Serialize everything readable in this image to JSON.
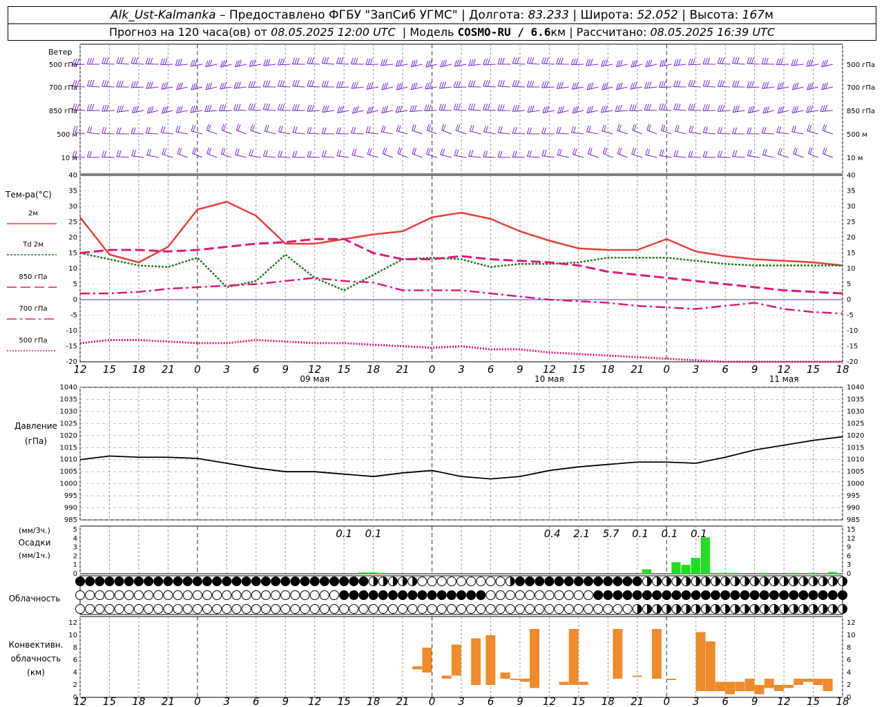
{
  "header": {
    "station": "Alk_Ust-Kalmanka",
    "provider": "Предоставлено ФГБУ \"ЗапСиб УГМС\"",
    "lon_label": "Долгота:",
    "lon_value": "83.233",
    "lat_label": "Широта:",
    "lat_value": "52.052",
    "alt_label": "Высота:",
    "alt_value": "167",
    "alt_unit": "м",
    "forecast_label": "Прогноз на 120 часа(ов) от",
    "forecast_time": "08.05.2025 12:00 UTC",
    "model_label": "Модель",
    "model_name": "COSMO-RU / 6.6",
    "model_unit": "км",
    "calc_label": "Рассчитано:",
    "calc_time": "08.05.2025 16:39 UTC"
  },
  "colors": {
    "wind": "#7a1fd6",
    "t2m": "#ea3e36",
    "td2m": "#1e7a1e",
    "t850": "#e0177e",
    "t700": "#e0177e",
    "t500": "#e0177e",
    "zero": "#3b3bd6",
    "pressure": "#000000",
    "precip": "#1ee01e",
    "convective": "#f08a2a",
    "grid": "#9a9a9a"
  },
  "time_axis": {
    "hour_labels": [
      "12",
      "15",
      "18",
      "21",
      "0",
      "3",
      "6",
      "9",
      "12",
      "15",
      "18",
      "21",
      "0",
      "3",
      "6",
      "9",
      "12",
      "15",
      "18",
      "21",
      "0",
      "3",
      "6",
      "9",
      "12",
      "15",
      "18"
    ],
    "day_labels": [
      {
        "hour": 24,
        "text": "09 мая"
      },
      {
        "hour": 48,
        "text": "10 мая"
      },
      {
        "hour": 72,
        "text": "11 мая"
      }
    ],
    "hours_start": 0,
    "hours_end": 78
  },
  "wind_panel": {
    "title": "Ветер",
    "levels": [
      "500 гПа",
      "700 гПа",
      "850 гПа",
      "500 м",
      "10 м"
    ]
  },
  "temp_panel": {
    "ylabel": "Тем-ра(°C)",
    "legend": [
      {
        "key": "t2m",
        "text": "2м",
        "style": "solid"
      },
      {
        "key": "td2m",
        "text": "Td  2м",
        "style": "dotted"
      },
      {
        "key": "t850",
        "text": "850 гПа",
        "style": "longdash"
      },
      {
        "key": "t700",
        "text": "700 гПа",
        "style": "dashdot"
      },
      {
        "key": "t500",
        "text": "500 гПа",
        "style": "dots"
      }
    ],
    "yticks": [
      "40",
      "35",
      "30",
      "25",
      "20",
      "15",
      "10",
      "5",
      "0",
      "-5",
      "-10",
      "-15",
      "-20"
    ]
  },
  "pressure_panel": {
    "ylabel1": "Давление",
    "ylabel2": "(гПа)",
    "yticks": [
      "1040",
      "1035",
      "1030",
      "1025",
      "1020",
      "1015",
      "1010",
      "1005",
      "1000",
      "995",
      "990",
      "985"
    ]
  },
  "precip_panel": {
    "label1": "(мм/3ч.)",
    "label2": "Осадки",
    "label3": "(мм/1ч.)",
    "yticks": [
      "5",
      "4",
      "3",
      "2",
      "1",
      "0"
    ],
    "amounts": [
      {
        "hour": 27,
        "text": "0.1"
      },
      {
        "hour": 30,
        "text": "0.1"
      },
      {
        "hour": 48.3,
        "text": "0.4"
      },
      {
        "hour": 51.3,
        "text": "2.1"
      },
      {
        "hour": 54.3,
        "text": "5.7"
      },
      {
        "hour": 57.3,
        "text": "0.1"
      },
      {
        "hour": 60.3,
        "text": "0.1"
      },
      {
        "hour": 63.3,
        "text": "0.1"
      }
    ]
  },
  "cloud_panel": {
    "label": "Облачность"
  },
  "conv_panel": {
    "label1": "Конвективн.",
    "label2": "облачность",
    "label3": "(км)",
    "yticks": [
      "12",
      "10",
      "8",
      "6",
      "4",
      "2",
      "0"
    ]
  },
  "chart_data": [
    {
      "type": "line",
      "title": "Тем-ра(°C)",
      "xlabel": "",
      "ylabel": "Тем-ра(°C)",
      "ylim": [
        -20,
        40
      ],
      "x_unit": "hours since 08.05.2025 12:00 UTC",
      "series": [
        {
          "name": "2м",
          "x": [
            0,
            3,
            6,
            9,
            12,
            15,
            18,
            21,
            24,
            27,
            30,
            33,
            36,
            39,
            42,
            45,
            48,
            51,
            54,
            57,
            60,
            63,
            66,
            69,
            72,
            75,
            78
          ],
          "values": [
            26.5,
            14.5,
            12,
            17,
            29,
            31.5,
            27,
            18,
            18,
            19.5,
            21,
            22,
            26.5,
            28,
            26,
            22,
            19,
            16.5,
            16,
            16,
            19.5,
            15.5,
            14,
            13,
            12.5,
            12,
            11
          ]
        },
        {
          "name": "Td  2м",
          "x": [
            0,
            3,
            6,
            9,
            12,
            15,
            18,
            21,
            24,
            27,
            30,
            33,
            36,
            39,
            42,
            45,
            48,
            51,
            54,
            57,
            60,
            63,
            66,
            69,
            72,
            75,
            78
          ],
          "values": [
            15,
            13,
            11,
            10.5,
            13.5,
            4,
            6,
            14.5,
            7,
            3,
            8,
            13,
            13.5,
            13,
            10.5,
            11.5,
            11.5,
            12,
            13.5,
            13.5,
            13.5,
            12.5,
            11.5,
            11,
            11,
            11,
            11
          ]
        },
        {
          "name": "850 гПа",
          "x": [
            0,
            3,
            6,
            9,
            12,
            15,
            18,
            21,
            24,
            27,
            30,
            33,
            36,
            39,
            42,
            45,
            48,
            51,
            54,
            57,
            60,
            63,
            66,
            69,
            72,
            75,
            78
          ],
          "values": [
            15,
            16,
            16,
            15.5,
            16,
            17,
            18,
            18.5,
            19.5,
            19.5,
            15,
            13,
            13,
            14,
            13,
            12.5,
            12,
            11,
            9,
            8,
            7,
            6,
            5,
            4,
            3,
            2.5,
            2
          ]
        },
        {
          "name": "700 гПа",
          "x": [
            0,
            3,
            6,
            9,
            12,
            15,
            18,
            21,
            24,
            27,
            30,
            33,
            36,
            39,
            42,
            45,
            48,
            51,
            54,
            57,
            60,
            63,
            66,
            69,
            72,
            75,
            78
          ],
          "values": [
            2,
            2,
            2.5,
            3.5,
            4,
            4.5,
            5,
            6,
            7,
            6,
            5.5,
            3,
            3,
            3,
            2,
            1,
            0,
            -0.5,
            -1,
            -2,
            -2.5,
            -3,
            -2,
            -1,
            -3,
            -4,
            -4.5
          ]
        },
        {
          "name": "500 гПа",
          "x": [
            0,
            3,
            6,
            9,
            12,
            15,
            18,
            21,
            24,
            27,
            30,
            33,
            36,
            39,
            42,
            45,
            48,
            51,
            54,
            57,
            60,
            63,
            66,
            69,
            72,
            75,
            78
          ],
          "values": [
            -14,
            -13,
            -13,
            -13.5,
            -14,
            -14,
            -13,
            -13.5,
            -14,
            -14,
            -14.5,
            -15,
            -15.5,
            -15,
            -16,
            -16,
            -17,
            -17.5,
            -18,
            -18.5,
            -19,
            -19.5,
            -20,
            -20.5,
            -21,
            -21,
            -21
          ]
        }
      ]
    },
    {
      "type": "line",
      "title": "Давление",
      "xlabel": "",
      "ylabel": "Давление (гПа)",
      "ylim": [
        985,
        1040
      ],
      "x_unit": "hours since 08.05.2025 12:00 UTC",
      "series": [
        {
          "name": "Давление",
          "x": [
            0,
            3,
            6,
            9,
            12,
            15,
            18,
            21,
            24,
            27,
            30,
            33,
            36,
            39,
            42,
            45,
            48,
            51,
            54,
            57,
            60,
            63,
            66,
            69,
            72,
            75,
            78
          ],
          "values": [
            1010,
            1011.5,
            1011,
            1011,
            1010.5,
            1008.5,
            1006.5,
            1005,
            1005,
            1004,
            1003,
            1004.5,
            1005.5,
            1003,
            1002,
            1003,
            1005.5,
            1007,
            1008,
            1009,
            1009,
            1008.5,
            1011,
            1014,
            1016,
            1018,
            1019.5
          ]
        }
      ]
    },
    {
      "type": "bar",
      "title": "Осадки",
      "xlabel": "",
      "ylabel": "(мм/1ч.)",
      "ylim": [
        0,
        5
      ],
      "x_unit": "hours since 08.05.2025 12:00 UTC",
      "x": [
        29,
        30,
        31,
        58,
        59,
        60,
        61,
        62,
        63,
        64,
        65,
        66,
        67,
        70,
        73,
        75,
        77
      ],
      "values": [
        0.15,
        0.15,
        0.1,
        0.5,
        0,
        0,
        1.3,
        1.0,
        1.8,
        4.1,
        0.1,
        0.1,
        0.1,
        0.1,
        0.1,
        0.1,
        0.2
      ]
    },
    {
      "type": "bar",
      "title": "Конвективн. облачность",
      "xlabel": "",
      "ylabel": "(км)",
      "ylim": [
        0,
        13
      ],
      "x_unit": "hours since 08.05.2025 12:00 UTC",
      "bars": [
        {
          "x": 34.5,
          "bottom": 4.5,
          "top": 5
        },
        {
          "x": 35.5,
          "bottom": 4,
          "top": 8
        },
        {
          "x": 37.5,
          "bottom": 3,
          "top": 3.5
        },
        {
          "x": 38.5,
          "bottom": 3.5,
          "top": 8.5
        },
        {
          "x": 40.5,
          "bottom": 2,
          "top": 9.5
        },
        {
          "x": 42,
          "bottom": 2,
          "top": 10
        },
        {
          "x": 43.5,
          "bottom": 3,
          "top": 4
        },
        {
          "x": 44.5,
          "bottom": 3,
          "top": 3
        },
        {
          "x": 45.5,
          "bottom": 2.5,
          "top": 3
        },
        {
          "x": 46.5,
          "bottom": 1.5,
          "top": 11
        },
        {
          "x": 49.5,
          "bottom": 2,
          "top": 2.5
        },
        {
          "x": 50.5,
          "bottom": 2,
          "top": 11
        },
        {
          "x": 51.5,
          "bottom": 2,
          "top": 2.5
        },
        {
          "x": 55,
          "bottom": 3,
          "top": 11
        },
        {
          "x": 57,
          "bottom": 3.5,
          "top": 3.5
        },
        {
          "x": 59,
          "bottom": 3,
          "top": 11
        },
        {
          "x": 60.5,
          "bottom": 3,
          "top": 3
        },
        {
          "x": 63.5,
          "bottom": 1,
          "top": 10.5
        },
        {
          "x": 64.5,
          "bottom": 1,
          "top": 9
        },
        {
          "x": 65.5,
          "bottom": 1,
          "top": 2.5
        },
        {
          "x": 66.5,
          "bottom": 0.5,
          "top": 2.5
        },
        {
          "x": 67.5,
          "bottom": 1,
          "top": 2.5
        },
        {
          "x": 68.5,
          "bottom": 1,
          "top": 3
        },
        {
          "x": 69.5,
          "bottom": 0.5,
          "top": 2
        },
        {
          "x": 70.5,
          "bottom": 1.5,
          "top": 3
        },
        {
          "x": 71.5,
          "bottom": 1,
          "top": 2
        },
        {
          "x": 72.5,
          "bottom": 1.5,
          "top": 2
        },
        {
          "x": 73.5,
          "bottom": 2,
          "top": 3
        },
        {
          "x": 74.5,
          "bottom": 2.5,
          "top": 3
        },
        {
          "x": 75.5,
          "bottom": 2,
          "top": 3
        },
        {
          "x": 76.5,
          "bottom": 1,
          "top": 3
        }
      ]
    }
  ]
}
